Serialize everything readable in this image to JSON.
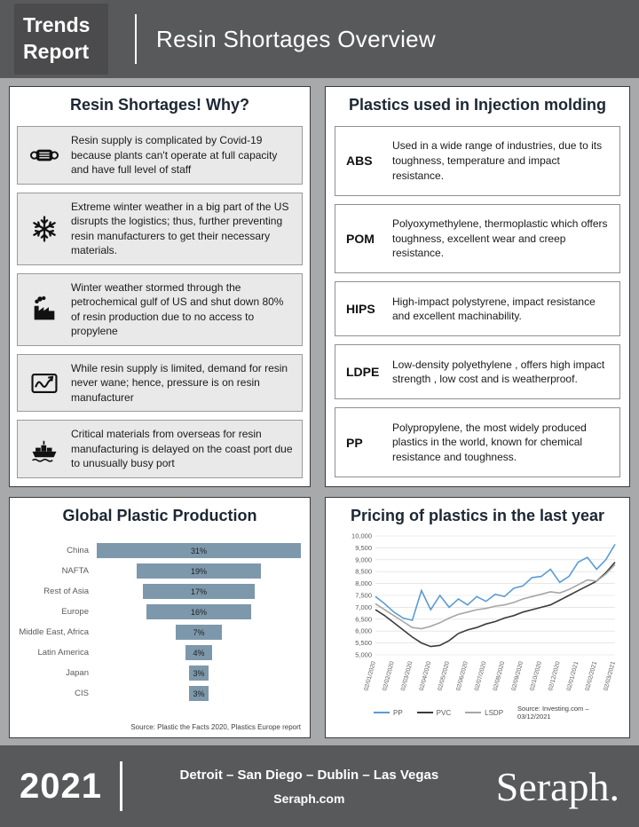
{
  "header": {
    "brand_line1": "Trends",
    "brand_line2": "Report",
    "title": "Resin Shortages Overview"
  },
  "reasons_panel": {
    "title": "Resin Shortages! Why?",
    "items": [
      {
        "icon": "mask-icon",
        "text": "Resin supply is complicated by Covid-19 because plants can't operate at full capacity and have full level of staff"
      },
      {
        "icon": "snowflake-icon",
        "text": "Extreme winter weather in a big part of the US disrupts the logistics; thus, further preventing resin manufacturers to get their necessary materials."
      },
      {
        "icon": "factory-icon",
        "text": "Winter weather stormed through the petrochemical gulf of US and shut down 80% of resin production due to no access to propylene"
      },
      {
        "icon": "demand-chart-icon",
        "text": "While resin supply is limited, demand for resin never wane; hence, pressure is on resin manufacturer"
      },
      {
        "icon": "cargo-ship-icon",
        "text": "Critical materials from overseas for resin manufacturing is delayed on the coast port due to unusually busy port"
      }
    ]
  },
  "plastics_panel": {
    "title": "Plastics used in Injection molding",
    "items": [
      {
        "abbr": "ABS",
        "text": "Used in a wide range of industries, due to its toughness, temperature and impact resistance."
      },
      {
        "abbr": "POM",
        "text": "Polyoxymethylene, thermoplastic which offers toughness, excellent wear and creep resistance."
      },
      {
        "abbr": "HIPS",
        "text": "High-impact polystyrene, impact resistance and excellent machinability."
      },
      {
        "abbr": "LDPE",
        "text": "Low-density polyethylene , offers high impact strength , low cost and is weatherproof."
      },
      {
        "abbr": "PP",
        "text": "Polypropylene, the most widely produced plastics in the world, known for chemical resistance and toughness."
      }
    ]
  },
  "production_panel": {
    "title": "Global Plastic Production",
    "source": "Source: Plastic the Facts 2020, Plastics Europe report"
  },
  "pricing_panel": {
    "title": "Pricing of plastics in the last year",
    "source": "Source: Investing.com – 03/12/2021"
  },
  "footer": {
    "year": "2021",
    "locations": "Detroit – San Diego – Dublin – Las Vegas",
    "website": "Seraph.com",
    "logo": "Seraph."
  },
  "chart_data": [
    {
      "type": "bar",
      "title": "Global Plastic Production",
      "layout": "centered-funnel-horizontal-bars",
      "categories": [
        "China",
        "NAFTA",
        "Rest of Asia",
        "Europe",
        "Middle East, Africa",
        "Latin America",
        "Japan",
        "CIS"
      ],
      "values": [
        31,
        19,
        17,
        16,
        7,
        4,
        3,
        3
      ],
      "unit": "%",
      "bar_color": "#7d98ab"
    },
    {
      "type": "line",
      "title": "Pricing of plastics in the last year",
      "x": [
        "02/01/2020",
        "02/02/2020",
        "02/03/2020",
        "02/04/2020",
        "02/05/2020",
        "02/06/2020",
        "02/07/2020",
        "02/08/2020",
        "02/09/2020",
        "02/10/2020",
        "02/12/2020",
        "02/01/2021",
        "02/02/2021",
        "02/03/2021"
      ],
      "ylim": [
        5000,
        10000
      ],
      "ytick_step": 500,
      "grid": true,
      "legend_position": "bottom",
      "series": [
        {
          "name": "PP",
          "color": "#5b9bd5",
          "values": [
            7450,
            7150,
            6800,
            6550,
            6450,
            7700,
            6900,
            7500,
            7000,
            7350,
            7100,
            7450,
            7250,
            7550,
            7450,
            7800,
            7900,
            8250,
            8300,
            8600,
            8050,
            8300,
            8900,
            9100,
            8600,
            9000,
            9650
          ]
        },
        {
          "name": "PVC",
          "color": "#3b3b3b",
          "values": [
            6900,
            6650,
            6350,
            6050,
            5750,
            5500,
            5350,
            5400,
            5600,
            5900,
            6050,
            6150,
            6300,
            6400,
            6550,
            6650,
            6800,
            6900,
            7000,
            7100,
            7300,
            7500,
            7700,
            7900,
            8100,
            8450,
            8900
          ]
        },
        {
          "name": "LSDP",
          "color": "#a6a6a6",
          "values": [
            7150,
            6900,
            6650,
            6400,
            6150,
            6100,
            6200,
            6350,
            6550,
            6700,
            6800,
            6900,
            6950,
            7050,
            7100,
            7200,
            7350,
            7450,
            7550,
            7650,
            7600,
            7750,
            7950,
            8150,
            8100,
            8400,
            8800
          ]
        }
      ]
    }
  ]
}
